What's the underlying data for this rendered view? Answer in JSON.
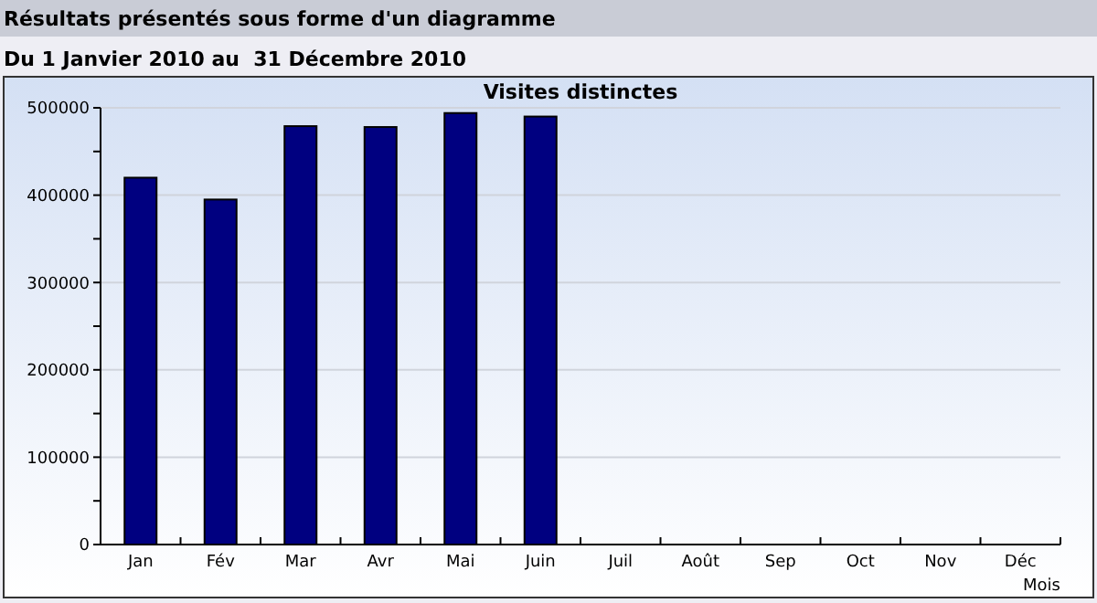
{
  "chart_data": {
    "type": "bar",
    "title": "Visites distinctes",
    "subtitle": "Du 1 Janvier 2010 au  31 Décembre 2010",
    "annotations": [
      "Résultats présentés sous forme d'un diagramme"
    ],
    "xlabel": "Mois",
    "categories": [
      "Jan",
      "Fév",
      "Mar",
      "Avr",
      "Mai",
      "Juin",
      "Juil",
      "Août",
      "Sep",
      "Oct",
      "Nov",
      "Déc"
    ],
    "values": [
      420000,
      395000,
      479000,
      478000,
      494000,
      490000,
      null,
      null,
      null,
      null,
      null,
      null
    ],
    "color": "#000080",
    "ylim": [
      0,
      500000
    ],
    "yticks": [
      0,
      {
        "value": 50000,
        "label": null
      },
      100000,
      {
        "value": 150000,
        "label": null
      },
      200000,
      {
        "value": 250000,
        "label": null
      },
      300000,
      {
        "value": 350000,
        "label": null
      },
      400000,
      {
        "value": 450000,
        "label": null
      },
      500000
    ],
    "grid": "y"
  }
}
